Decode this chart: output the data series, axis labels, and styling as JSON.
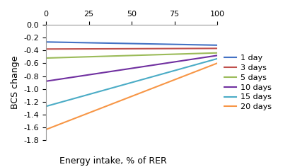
{
  "xlabel": "Energy intake, % of RER",
  "ylabel": "BCS change",
  "xlim": [
    0,
    100
  ],
  "ylim": [
    -1.8,
    0
  ],
  "xticks": [
    0,
    25,
    50,
    75,
    100
  ],
  "yticks": [
    -1.8,
    -1.6,
    -1.4,
    -1.2,
    -1.0,
    -0.8,
    -0.6,
    -0.4,
    -0.2,
    0.0
  ],
  "series": [
    {
      "label": "1 day",
      "color": "#4472C4",
      "y_at_0": -0.27,
      "y_at_100": -0.32
    },
    {
      "label": "3 days",
      "color": "#C0504D",
      "y_at_0": -0.38,
      "y_at_100": -0.37
    },
    {
      "label": "5 days",
      "color": "#9BBB59",
      "y_at_0": -0.52,
      "y_at_100": -0.44
    },
    {
      "label": "10 days",
      "color": "#7030A0",
      "y_at_0": -0.88,
      "y_at_100": -0.48
    },
    {
      "label": "15 days",
      "color": "#4BACC6",
      "y_at_0": -1.27,
      "y_at_100": -0.53
    },
    {
      "label": "20 days",
      "color": "#F79646",
      "y_at_0": -1.63,
      "y_at_100": -0.6
    }
  ],
  "background_color": "#ffffff",
  "line_width": 1.5,
  "spine_color": "#999999",
  "tick_fontsize": 8,
  "label_fontsize": 9,
  "legend_fontsize": 8
}
